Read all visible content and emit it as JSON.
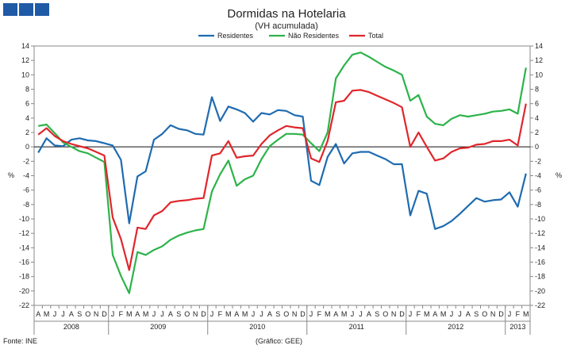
{
  "logo": {
    "colors": [
      "#1f5aa6",
      "#1f5aa6",
      "#1f5aa6"
    ]
  },
  "footer": {
    "source": "Fonte: INE",
    "credit": "(Gráfico: GEE)"
  },
  "axis": {
    "unit_left": "%",
    "unit_right": "%"
  },
  "chart_data": {
    "type": "line",
    "title": "Dormidas na Hotelaria",
    "subtitle": "(VH acumulada)",
    "xlabel": "",
    "ylabel": "%",
    "ylim": [
      -22,
      14
    ],
    "yticks": [
      14,
      12,
      10,
      8,
      6,
      4,
      2,
      0,
      -2,
      -4,
      -6,
      -8,
      -10,
      -12,
      -14,
      -16,
      -18,
      -20,
      -22
    ],
    "legend_position": "top-center",
    "categories": [
      "A",
      "M",
      "J",
      "J",
      "A",
      "S",
      "O",
      "N",
      "D",
      "J",
      "F",
      "M",
      "A",
      "M",
      "J",
      "J",
      "A",
      "S",
      "O",
      "N",
      "D",
      "J",
      "F",
      "M",
      "A",
      "M",
      "J",
      "J",
      "A",
      "S",
      "O",
      "N",
      "D",
      "J",
      "F",
      "M",
      "A",
      "M",
      "J",
      "J",
      "A",
      "S",
      "O",
      "N",
      "D",
      "J",
      "F",
      "M",
      "A",
      "M",
      "J",
      "J",
      "A",
      "S",
      "O",
      "N",
      "D",
      "J",
      "F",
      "M"
    ],
    "years": [
      {
        "label": "2008",
        "start": 0,
        "end": 8
      },
      {
        "label": "2009",
        "start": 9,
        "end": 20
      },
      {
        "label": "2010",
        "start": 21,
        "end": 32
      },
      {
        "label": "2011",
        "start": 33,
        "end": 44
      },
      {
        "label": "2012",
        "start": 45,
        "end": 56
      },
      {
        "label": "2013",
        "start": 57,
        "end": 59
      }
    ],
    "series": [
      {
        "name": "Residentes",
        "color": "#1f6bb0",
        "values": [
          -0.8,
          1.2,
          0.2,
          0.1,
          1.0,
          1.2,
          0.9,
          0.8,
          0.5,
          0.2,
          -1.8,
          -10.6,
          -4.1,
          -3.4,
          1.0,
          1.8,
          3.0,
          2.5,
          2.3,
          1.8,
          1.7,
          6.9,
          3.6,
          5.6,
          5.2,
          4.7,
          3.5,
          4.7,
          4.5,
          5.1,
          5.0,
          4.4,
          4.2,
          -4.7,
          -5.3,
          -1.4,
          0.4,
          -2.3,
          -0.9,
          -0.7,
          -0.7,
          -1.2,
          -1.7,
          -2.4,
          -2.4,
          -9.5,
          -6.1,
          -6.5,
          -11.4,
          -11.0,
          -10.3,
          -9.3,
          -8.2,
          -7.1,
          -7.6,
          -7.4,
          -7.3,
          -6.3,
          -8.3,
          -3.7
        ]
      },
      {
        "name": "Não Residentes",
        "color": "#2db34a",
        "values": [
          2.9,
          3.1,
          1.9,
          0.6,
          0.0,
          -0.6,
          -0.9,
          -1.5,
          -2.1,
          -15.0,
          -17.9,
          -20.3,
          -14.6,
          -15.0,
          -14.3,
          -13.8,
          -12.9,
          -12.3,
          -11.9,
          -11.6,
          -11.4,
          -6.2,
          -3.8,
          -1.9,
          -5.4,
          -4.5,
          -4.0,
          -1.7,
          0.1,
          1.0,
          1.8,
          1.8,
          1.7,
          0.5,
          -0.6,
          2.0,
          9.5,
          11.3,
          12.8,
          13.1,
          12.5,
          11.8,
          11.1,
          10.6,
          10.0,
          6.4,
          7.2,
          4.2,
          3.2,
          3.0,
          3.9,
          4.4,
          4.2,
          4.4,
          4.6,
          4.9,
          5.0,
          5.2,
          4.6,
          11.0
        ]
      },
      {
        "name": "Total",
        "color": "#e0262b",
        "values": [
          1.7,
          2.6,
          1.5,
          0.8,
          0.4,
          0.1,
          -0.2,
          -0.7,
          -1.2,
          -9.8,
          -12.8,
          -17.1,
          -11.2,
          -11.4,
          -9.5,
          -8.9,
          -7.7,
          -7.5,
          -7.4,
          -7.2,
          -7.1,
          -1.2,
          -0.9,
          0.8,
          -1.5,
          -1.3,
          -1.2,
          0.4,
          1.6,
          2.3,
          2.9,
          2.7,
          2.6,
          -1.6,
          -2.1,
          0.8,
          6.2,
          6.4,
          7.8,
          7.9,
          7.6,
          7.1,
          6.6,
          6.1,
          5.5,
          0.0,
          2.0,
          0.0,
          -1.9,
          -1.6,
          -0.7,
          -0.2,
          -0.1,
          0.3,
          0.4,
          0.8,
          0.8,
          1.0,
          0.2,
          6.0
        ]
      }
    ]
  }
}
